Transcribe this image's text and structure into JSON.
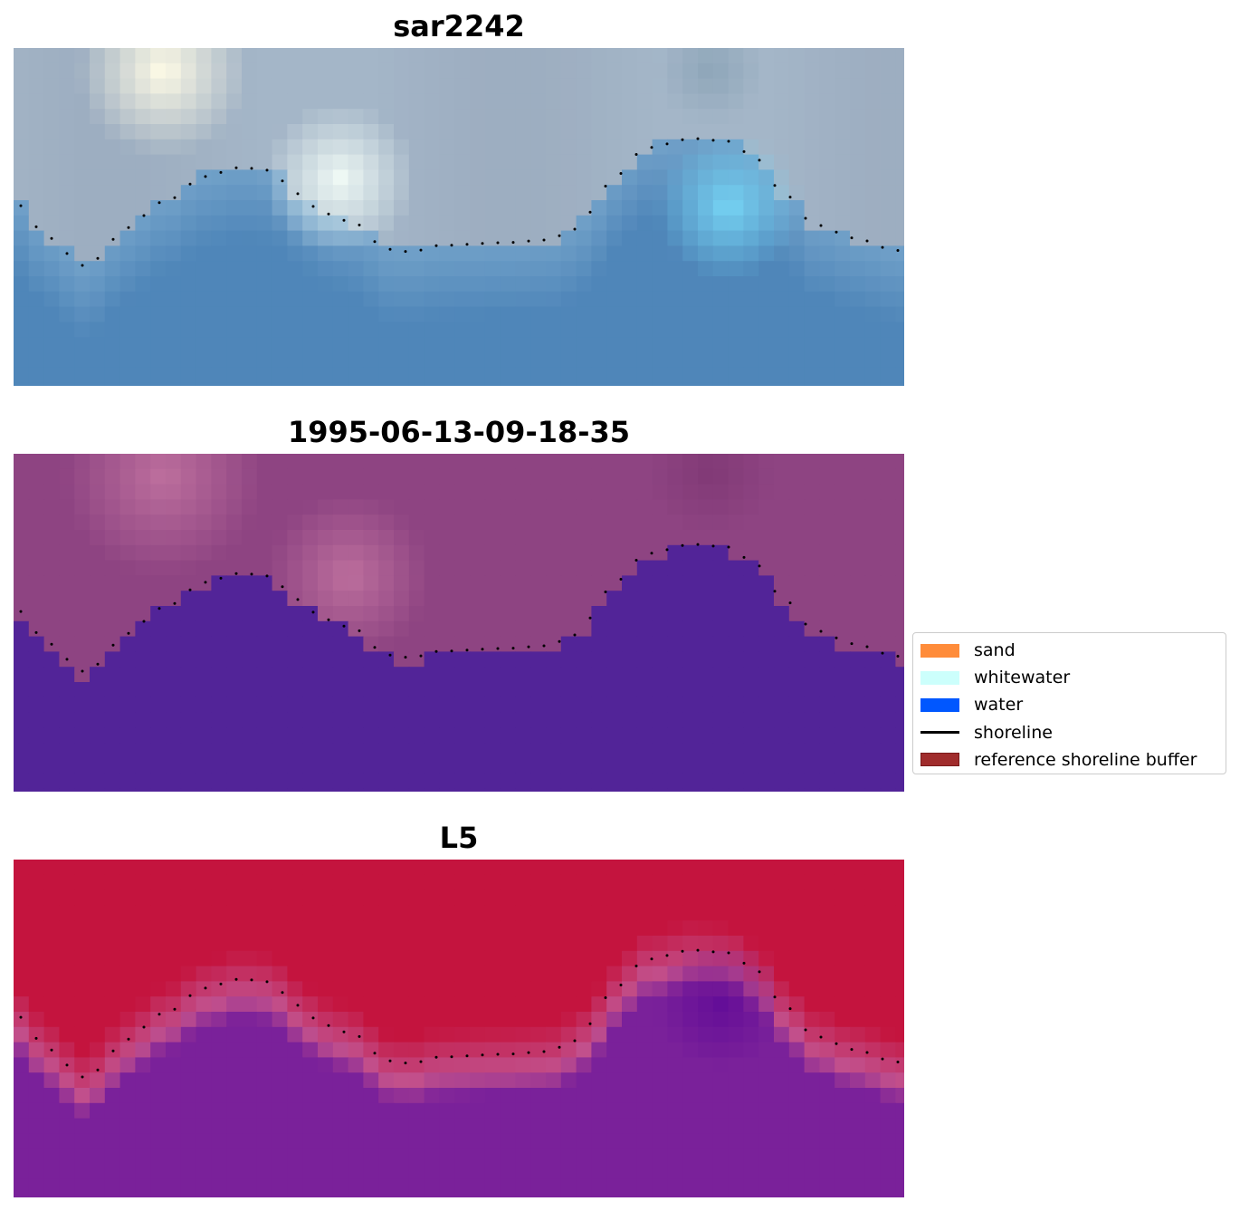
{
  "panels": [
    {
      "title": "sar2242",
      "style": "sar"
    },
    {
      "title": "1995-06-13-09-18-35",
      "style": "classified"
    },
    {
      "title": "L5",
      "style": "probability"
    }
  ],
  "legend": {
    "items": [
      {
        "label": "sand",
        "color": "#ff8c3a",
        "kind": "patch"
      },
      {
        "label": "whitewater",
        "color": "#ccfffc",
        "kind": "patch"
      },
      {
        "label": "water",
        "color": "#0057ff",
        "kind": "patch"
      },
      {
        "label": "shoreline",
        "color": "#000000",
        "kind": "line"
      },
      {
        "label": "reference shoreline buffer",
        "color": "#a02c2c",
        "kind": "patch"
      }
    ]
  },
  "colors": {
    "sar_sky": "#a4b6c8",
    "sar_water": "#4f86b9",
    "sar_bright": "#fffbe6",
    "sar_cyan": "#76d4f4",
    "classified_top": "#8e4482",
    "classified_bright": "#bd6f9d",
    "classified_water": "#522498",
    "prob_top": "#c4143e",
    "prob_mid": "#c2508c",
    "prob_water": "#7a219a",
    "shoreline_dots": "#000000"
  }
}
